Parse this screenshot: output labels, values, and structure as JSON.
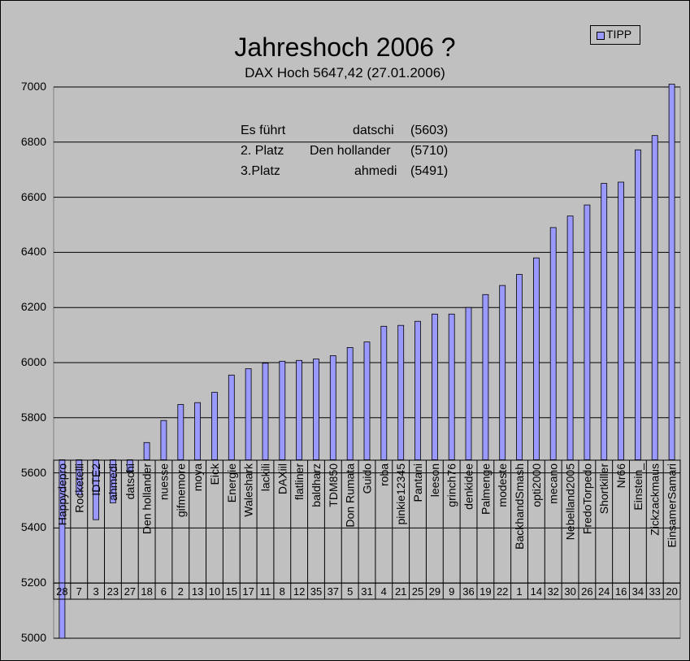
{
  "chart_data": {
    "type": "bar",
    "title": "Jahreshoch 2006 ?",
    "subtitle": "DAX Hoch 5647,42 (27.01.2006)",
    "legend": "TIPP",
    "legend_position": "top-right",
    "ylim": [
      5000,
      7000
    ],
    "yticks": [
      5000,
      5200,
      5400,
      5600,
      5800,
      6000,
      6200,
      6400,
      6600,
      6800,
      7000
    ],
    "baseline": 5647.42,
    "grid": true,
    "bar_color": "#9999ff",
    "plot_bg": "#c0c0c0",
    "categories": [
      "Happydepro",
      "Rocketelli",
      "IDTE2",
      "ahmedi",
      "datschi",
      "Den hollander",
      "nuesse",
      "gifmemore",
      "moya",
      "Eick",
      "Energie",
      "Waleshark",
      "lackili",
      "DAXiil",
      "flatliner",
      "baldharz",
      "TDM850",
      "Don Rumata",
      "Guido",
      "roba",
      "pinkie12345",
      "Pantani",
      "leeson",
      "grinch76",
      "denkidee",
      "Palmenge",
      "modeste",
      "BackhandSmash",
      "opti2000",
      "mecano",
      "Nebelland2005",
      "FredoTorpedo",
      "Shortkiller",
      "Nr66",
      "Einstein_",
      "Zickzackmaus",
      "EinsamerSamari"
    ],
    "ranks": [
      "28",
      "7",
      "3",
      "23",
      "27",
      "18",
      "6",
      "2",
      "13",
      "10",
      "15",
      "17",
      "11",
      "8",
      "12",
      "35",
      "37",
      "5",
      "31",
      "4",
      "21",
      "25",
      "29",
      "9",
      "36",
      "19",
      "22",
      "1",
      "14",
      "32",
      "30",
      "26",
      "24",
      "16",
      "34",
      "33",
      "20"
    ],
    "values": [
      5000,
      5520,
      5430,
      5491,
      5603,
      5710,
      5790,
      5848,
      5855,
      5892,
      5955,
      5978,
      5998,
      6005,
      6008,
      6013,
      6025,
      6055,
      6075,
      6132,
      6135,
      6150,
      6176,
      6176,
      6200,
      6247,
      6280,
      6320,
      6380,
      6490,
      6532,
      6572,
      6650,
      6655,
      6772,
      6824,
      7010
    ]
  },
  "annotations": [
    {
      "label": "Es führt",
      "name": "datschi",
      "value": "(5603)"
    },
    {
      "label": "2. Platz",
      "name": "Den hollander",
      "value": "(5710)"
    },
    {
      "label": "3.Platz",
      "name": "ahmedi",
      "value": "(5491)"
    }
  ]
}
